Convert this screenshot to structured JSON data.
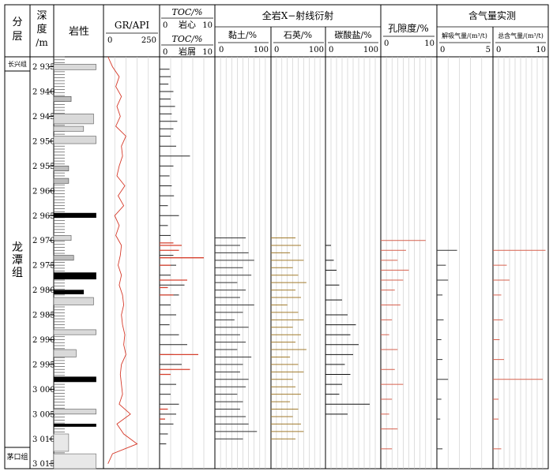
{
  "header": {
    "formation": "分层",
    "depth_line1": "深",
    "depth_line2": "度",
    "depth_unit": "/m",
    "lithology": "岩性",
    "gr_title": "GR/API",
    "gr_min": "0",
    "gr_max": "250",
    "toc_core_title": "TOC/%",
    "toc_core_label": "岩心",
    "toc_core_min": "0",
    "toc_core_max": "10",
    "toc_cuttings_title": "TOC/%",
    "toc_cuttings_label": "岩屑",
    "toc_cuttings_min": "0",
    "toc_cuttings_max": "10",
    "xrd_group": "全岩X−射线衍射",
    "clay_title": "黏土/%",
    "quartz_title": "石英/%",
    "carbonate_title": "碳酸盐/%",
    "xrd_min": "0",
    "xrd_max": "100",
    "porosity_title": "孔隙度/%",
    "porosity_min": "0",
    "porosity_max": "10",
    "gas_group": "含气量实测",
    "desorbed_title": "解吸气量/(m³/t)",
    "desorbed_min": "0",
    "desorbed_max": "5",
    "total_gas_title": "总含气量/(m³/t)",
    "total_gas_min": "0",
    "total_gas_max": "10"
  },
  "formations": {
    "changxing": "长兴组",
    "longtan_1": "龙",
    "longtan_2": "潭",
    "longtan_3": "组",
    "maokou": "茅口组"
  },
  "colors": {
    "ink": "#000000",
    "gr_curve": "#d63a2a",
    "toc_core": "#d6402e",
    "quartz": "#a07a2c",
    "porosity": "#d6604e",
    "grid": "#c8c8c8",
    "lith_fill": "#d9d9d9"
  },
  "chart_data": {
    "type": "well-log",
    "depth_axis": {
      "range": [
        2933,
        3016
      ],
      "ticks": [
        2935,
        2940,
        2945,
        2950,
        2955,
        2960,
        2965,
        2970,
        2975,
        2980,
        2985,
        2990,
        2995,
        3000,
        3005,
        3010,
        3015
      ],
      "tick_labels": [
        "2 935",
        "2 940",
        "2 945",
        "2 950",
        "2 955",
        "2 960",
        "2 965",
        "2 970",
        "2 975",
        "2 980",
        "2 985",
        "2 990",
        "2 995",
        "3 000",
        "3 005",
        "3 010",
        "3 015"
      ]
    },
    "formation_intervals": [
      {
        "name": "长兴组",
        "top": 2933,
        "base": 2934.8
      },
      {
        "name": "龙潭组",
        "top": 2934.8,
        "base": 3013.0
      },
      {
        "name": "茅口组",
        "top": 3013.0,
        "base": 3016
      }
    ],
    "lithology_beds": [
      {
        "top": 2934.5,
        "base": 2935.6,
        "kind": "mudstone",
        "width": 0.85
      },
      {
        "top": 2941.0,
        "base": 2942.0,
        "kind": "sandstone",
        "width": 0.35
      },
      {
        "top": 2944.5,
        "base": 2946.5,
        "kind": "mudstone",
        "width": 0.8
      },
      {
        "top": 2947.0,
        "base": 2948.0,
        "kind": "mudstone",
        "width": 0.6
      },
      {
        "top": 2949.0,
        "base": 2950.5,
        "kind": "mudstone",
        "width": 0.85
      },
      {
        "top": 2955.0,
        "base": 2956.0,
        "kind": "sandstone",
        "width": 0.3
      },
      {
        "top": 2957.5,
        "base": 2958.5,
        "kind": "sandstone",
        "width": 0.3
      },
      {
        "top": 2964.5,
        "base": 2965.4,
        "kind": "coal",
        "width": 0.85
      },
      {
        "top": 2969.0,
        "base": 2970.0,
        "kind": "mudstone",
        "width": 0.35
      },
      {
        "top": 2973.0,
        "base": 2974.0,
        "kind": "sandstone",
        "width": 0.4
      },
      {
        "top": 2976.5,
        "base": 2977.8,
        "kind": "coal",
        "width": 0.85
      },
      {
        "top": 2980.0,
        "base": 2980.8,
        "kind": "coal",
        "width": 0.6
      },
      {
        "top": 2981.5,
        "base": 2983.0,
        "kind": "mudstone",
        "width": 0.8
      },
      {
        "top": 2988.0,
        "base": 2989.0,
        "kind": "mudstone",
        "width": 0.85
      },
      {
        "top": 2992.0,
        "base": 2993.5,
        "kind": "mudstone",
        "width": 0.45
      },
      {
        "top": 2997.5,
        "base": 2998.5,
        "kind": "coal",
        "width": 0.85
      },
      {
        "top": 3004.0,
        "base": 3005.0,
        "kind": "mudstone",
        "width": 0.85
      },
      {
        "top": 3007.0,
        "base": 3007.5,
        "kind": "coal",
        "width": 0.85
      },
      {
        "top": 3009.0,
        "base": 3012.5,
        "kind": "limestone",
        "width": 0.3
      },
      {
        "top": 3013.0,
        "base": 3016.0,
        "kind": "limestone",
        "width": 0.85
      }
    ],
    "gr_curve": {
      "depth": [
        2933,
        2935,
        2937,
        2939,
        2941,
        2943,
        2945,
        2947,
        2949,
        2951,
        2953,
        2955,
        2957,
        2959,
        2961,
        2963,
        2965,
        2967,
        2969,
        2971,
        2973,
        2975,
        2977,
        2979,
        2981,
        2983,
        2985,
        2987,
        2989,
        2991,
        2993,
        2995,
        2997,
        2999,
        3001,
        3003,
        3005,
        3007,
        3009,
        3011,
        3013,
        3015
      ],
      "values": [
        20,
        40,
        70,
        55,
        80,
        60,
        75,
        55,
        100,
        80,
        85,
        70,
        60,
        95,
        65,
        90,
        50,
        70,
        55,
        80,
        75,
        65,
        80,
        70,
        85,
        90,
        80,
        85,
        95,
        90,
        100,
        80,
        75,
        80,
        85,
        70,
        120,
        60,
        90,
        150,
        40,
        20
      ]
    },
    "toc_core": {
      "depth": [
        2970.5,
        2971.0,
        2972.0,
        2973.5,
        2975.0,
        2978.0,
        2979.5,
        2981.0,
        2993.0,
        2996.0,
        2997.0,
        3004.0,
        3006.0
      ],
      "values": [
        2.5,
        4.0,
        3.5,
        8.0,
        2.0,
        5.0,
        1.5,
        2.5,
        7.0,
        5.5,
        2.0,
        1.5,
        1.0
      ]
    },
    "toc_cuttings": {
      "depth": [
        2935.5,
        2937,
        2938.5,
        2940,
        2941.5,
        2943,
        2944.5,
        2946,
        2947.5,
        2949,
        2951,
        2953,
        2955,
        2957,
        2959,
        2961,
        2963,
        2965,
        2967,
        2969,
        2971,
        2973,
        2975,
        2977,
        2979,
        2981,
        2983,
        2985,
        2987,
        2989,
        2991,
        2993,
        2995,
        2997,
        2999,
        3001,
        3003,
        3005,
        3007,
        3009,
        3011
      ],
      "values": [
        1.8,
        2.0,
        1.6,
        2.5,
        2.0,
        2.8,
        2.2,
        3.2,
        2.5,
        2.0,
        3.0,
        5.5,
        2.5,
        1.8,
        2.2,
        2.6,
        1.5,
        3.5,
        1.5,
        2.0,
        4.0,
        2.5,
        3.0,
        2.0,
        4.5,
        3.5,
        2.0,
        3.0,
        1.8,
        3.5,
        5.0,
        2.5,
        4.0,
        1.5,
        3.0,
        2.0,
        3.5,
        3.0,
        2.5,
        1.5,
        1.2
      ]
    },
    "clay": {
      "depth": [
        2969.5,
        2971,
        2972.5,
        2974,
        2975.5,
        2977,
        2978.5,
        2980,
        2981.5,
        2983,
        2984.5,
        2986,
        2987.5,
        2989,
        2990.5,
        2992,
        2993.5,
        2995,
        2996.5,
        2998,
        2999.5,
        3001,
        3002.5,
        3004,
        3005.5,
        3007,
        3008.5,
        3010
      ],
      "values": [
        55,
        45,
        60,
        70,
        50,
        65,
        40,
        55,
        45,
        70,
        50,
        35,
        60,
        45,
        55,
        40,
        65,
        50,
        45,
        60,
        55,
        40,
        50,
        45,
        55,
        60,
        75,
        50
      ]
    },
    "quartz": {
      "depth": [
        2969.5,
        2971,
        2972.5,
        2974,
        2975.5,
        2977,
        2978.5,
        2980,
        2981.5,
        2983,
        2984.5,
        2986,
        2987.5,
        2989,
        2990.5,
        2992,
        2993.5,
        2995,
        2996.5,
        2998,
        2999.5,
        3001,
        3002.5,
        3004,
        3005.5,
        3007,
        3008.5,
        3010
      ],
      "values": [
        45,
        55,
        35,
        60,
        40,
        50,
        65,
        45,
        55,
        30,
        50,
        60,
        40,
        55,
        45,
        65,
        35,
        50,
        60,
        40,
        45,
        55,
        35,
        50,
        40,
        55,
        60,
        45
      ]
    },
    "carbonate": {
      "depth": [
        2971,
        2974,
        2976,
        2979,
        2982,
        2985,
        2987,
        2989,
        2991,
        2993,
        2995,
        2997,
        2999,
        3001,
        3003,
        3005
      ],
      "values": [
        10,
        15,
        20,
        25,
        30,
        40,
        55,
        45,
        60,
        50,
        35,
        45,
        30,
        25,
        80,
        40
      ]
    },
    "porosity": {
      "depth": [
        2970,
        2972,
        2974,
        2976,
        2978,
        2980,
        2983,
        2986,
        2989,
        2992,
        2996,
        2999,
        3002,
        3005,
        3008,
        3012
      ],
      "values": [
        8.0,
        4.5,
        3.0,
        5.0,
        4.0,
        2.5,
        3.5,
        2.0,
        1.5,
        3.0,
        2.5,
        4.0,
        2.0,
        1.5,
        3.0,
        2.0
      ]
    },
    "desorbed_gas": {
      "depth": [
        2972,
        2975,
        2978,
        2981,
        2986,
        2990,
        2994,
        2998,
        3002,
        3006,
        3012
      ],
      "values": [
        1.8,
        0.8,
        1.0,
        0.5,
        0.6,
        0.4,
        0.5,
        1.0,
        0.4,
        0.3,
        0.5
      ]
    },
    "total_gas": {
      "depth": [
        2972,
        2975,
        2978,
        2981,
        2986,
        2990,
        2994,
        2998,
        3002,
        3006,
        3012
      ],
      "values": [
        9.5,
        2.5,
        3.0,
        1.5,
        1.8,
        1.2,
        2.0,
        9.0,
        1.0,
        1.0,
        1.5
      ]
    }
  }
}
